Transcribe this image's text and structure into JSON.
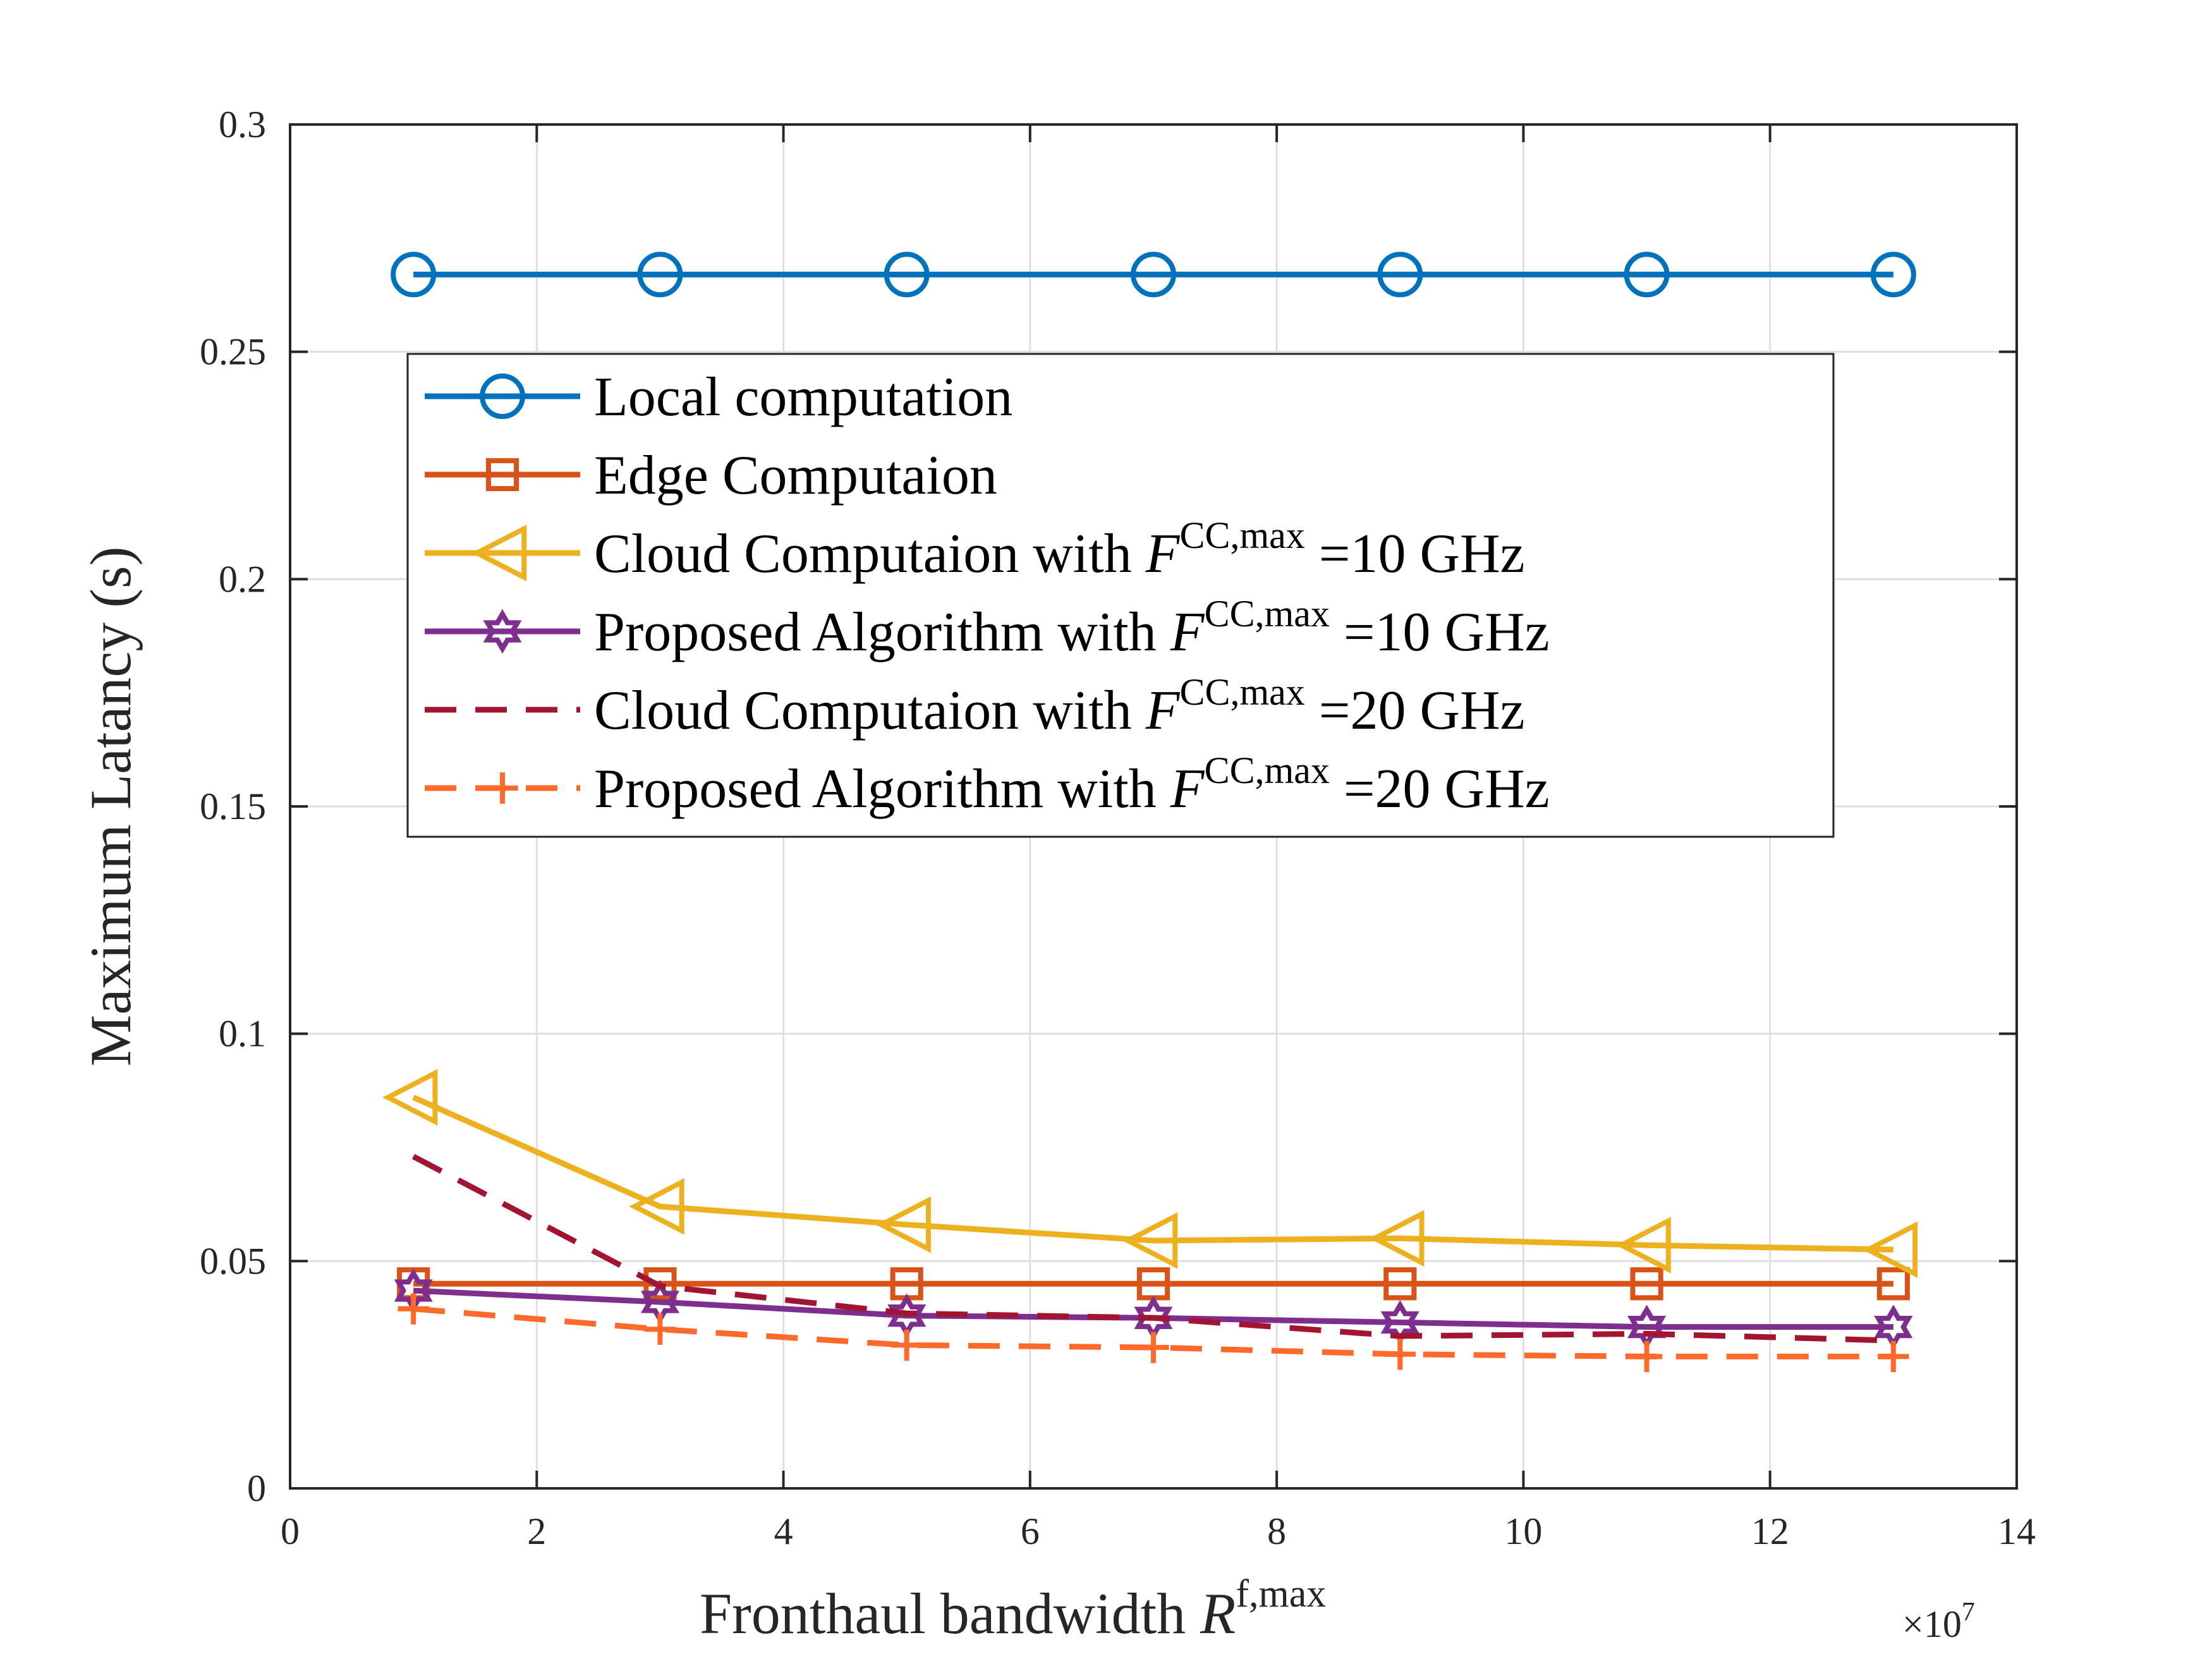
{
  "chart_data": {
    "type": "line",
    "title": "",
    "xlabel": {
      "main": "Fronthaul bandwidth ",
      "var": "R",
      "sup": "f,max"
    },
    "ylabel": "Maximum Latancy (s)",
    "x_exponent": {
      "base": "×10",
      "power": "7"
    },
    "xlim": [
      0,
      14
    ],
    "ylim": [
      0,
      0.3
    ],
    "xticks": [
      0,
      2,
      4,
      6,
      8,
      10,
      12,
      14
    ],
    "xtick_labels": [
      "0",
      "2",
      "4",
      "6",
      "8",
      "10",
      "12",
      "14"
    ],
    "yticks": [
      0,
      0.05,
      0.1,
      0.15,
      0.2,
      0.25,
      0.3
    ],
    "ytick_labels": [
      "0",
      "0.05",
      "0.1",
      "0.15",
      "0.2",
      "0.25",
      "0.3"
    ],
    "grid": true,
    "legend_position": "upper-center",
    "x": [
      1,
      3,
      5,
      7,
      9,
      11,
      13
    ],
    "series": [
      {
        "name": "Local computation",
        "label_text": "Local computation",
        "marker": "circle",
        "dash": "solid",
        "color": "#0072BD",
        "values": [
          0.267,
          0.267,
          0.267,
          0.267,
          0.267,
          0.267,
          0.267
        ]
      },
      {
        "name": "Edge Computaion",
        "label_text": "Edge Computaion",
        "marker": "square",
        "dash": "solid",
        "color": "#D95319",
        "values": [
          0.045,
          0.045,
          0.045,
          0.045,
          0.045,
          0.045,
          0.045
        ]
      },
      {
        "name": "Cloud Computaion with F^{CC,max} =10 GHz",
        "label_text": "Cloud Computaion with ",
        "var": "F",
        "sup": "CC,max",
        "suffix": " =10 GHz",
        "marker": "triangle-left",
        "dash": "solid",
        "color": "#EDB120",
        "values": [
          0.086,
          0.062,
          0.058,
          0.0545,
          0.055,
          0.0535,
          0.0525
        ]
      },
      {
        "name": "Proposed Algorithm with F^{CC,max} =10 GHz",
        "label_text": "Proposed Algorithm with ",
        "var": "F",
        "sup": "CC,max",
        "suffix": " =10 GHz",
        "marker": "hexagram",
        "dash": "solid",
        "color": "#7E2F8E",
        "values": [
          0.0435,
          0.041,
          0.038,
          0.0375,
          0.0365,
          0.0355,
          0.0355
        ]
      },
      {
        "name": "Cloud Computaion with F^{CC,max} =20 GHz",
        "label_text": "Cloud Computaion with ",
        "var": "F",
        "sup": "CC,max",
        "suffix": " =20 GHz",
        "marker": "none",
        "dash": "dashed",
        "color": "#A2142F",
        "values": [
          0.073,
          0.0445,
          0.0385,
          0.0375,
          0.0335,
          0.034,
          0.0325
        ]
      },
      {
        "name": "Proposed Algorithm with F^{CC,max} =20 GHz",
        "label_text": "Proposed Algorithm with ",
        "var": "F",
        "sup": "CC,max",
        "suffix": " =20 GHz",
        "marker": "plus",
        "dash": "dashed",
        "color": "#FF6929",
        "values": [
          0.0395,
          0.035,
          0.0315,
          0.031,
          0.0295,
          0.029,
          0.029
        ]
      }
    ]
  }
}
